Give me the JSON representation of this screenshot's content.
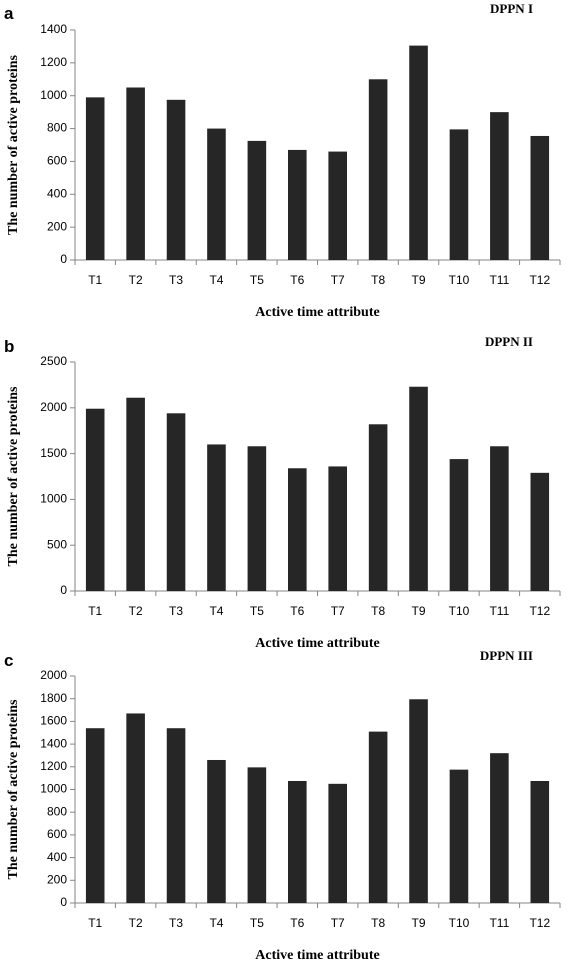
{
  "chart_data": [
    {
      "type": "bar",
      "panel": "a",
      "title": "DPPN I",
      "xlabel": "Active time attribute",
      "ylabel": "The number of active proteins",
      "categories": [
        "T1",
        "T2",
        "T3",
        "T4",
        "T5",
        "T6",
        "T7",
        "T8",
        "T9",
        "T10",
        "T11",
        "T12"
      ],
      "values": [
        990,
        1050,
        975,
        800,
        725,
        670,
        660,
        1100,
        1305,
        795,
        900,
        755
      ],
      "ylim": [
        0,
        1400
      ],
      "yticks": [
        0,
        200,
        400,
        600,
        800,
        1000,
        1200,
        1400
      ],
      "bar_color": "#262626",
      "grid": false,
      "legend": "none"
    },
    {
      "type": "bar",
      "panel": "b",
      "title": "DPPN II",
      "xlabel": "Active time attribute",
      "ylabel": "The number of active proteins",
      "categories": [
        "T1",
        "T2",
        "T3",
        "T4",
        "T5",
        "T6",
        "T7",
        "T8",
        "T9",
        "T10",
        "T11",
        "T12"
      ],
      "values": [
        1990,
        2110,
        1940,
        1600,
        1580,
        1340,
        1360,
        1820,
        2230,
        1440,
        1580,
        1290
      ],
      "ylim": [
        0,
        2500
      ],
      "yticks": [
        0,
        500,
        1000,
        1500,
        2000,
        2500
      ],
      "bar_color": "#262626",
      "grid": false,
      "legend": "none"
    },
    {
      "type": "bar",
      "panel": "c",
      "title": "DPPN III",
      "xlabel": "Active time attribute",
      "ylabel": "The number of active proteins",
      "categories": [
        "T1",
        "T2",
        "T3",
        "T4",
        "T5",
        "T6",
        "T7",
        "T8",
        "T9",
        "T10",
        "T11",
        "T12"
      ],
      "values": [
        1540,
        1670,
        1540,
        1260,
        1195,
        1075,
        1050,
        1510,
        1795,
        1175,
        1320,
        1075
      ],
      "ylim": [
        0,
        2000
      ],
      "yticks": [
        0,
        200,
        400,
        600,
        800,
        1000,
        1200,
        1400,
        1600,
        1800,
        2000
      ],
      "bar_color": "#262626",
      "grid": false,
      "legend": "none"
    }
  ]
}
